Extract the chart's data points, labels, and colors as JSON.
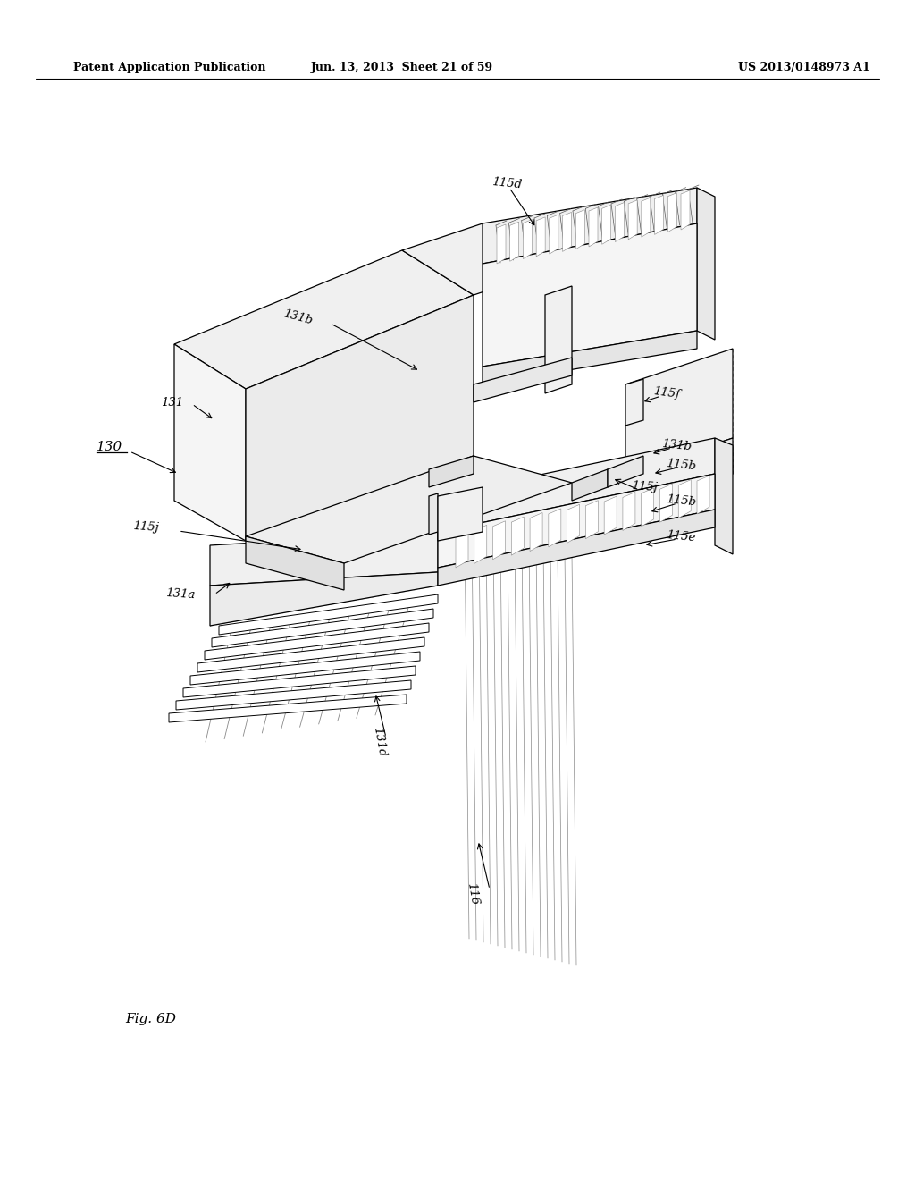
{
  "bg_color": "#ffffff",
  "header_left": "Patent Application Publication",
  "header_center": "Jun. 13, 2013  Sheet 21 of 59",
  "header_right": "US 2013/0148973 A1",
  "fig_label": "Fig. 6D",
  "line_color": "#000000",
  "text_color": "#000000",
  "lw_main": 0.9,
  "lw_dashed": 0.7,
  "lw_thin": 0.5
}
